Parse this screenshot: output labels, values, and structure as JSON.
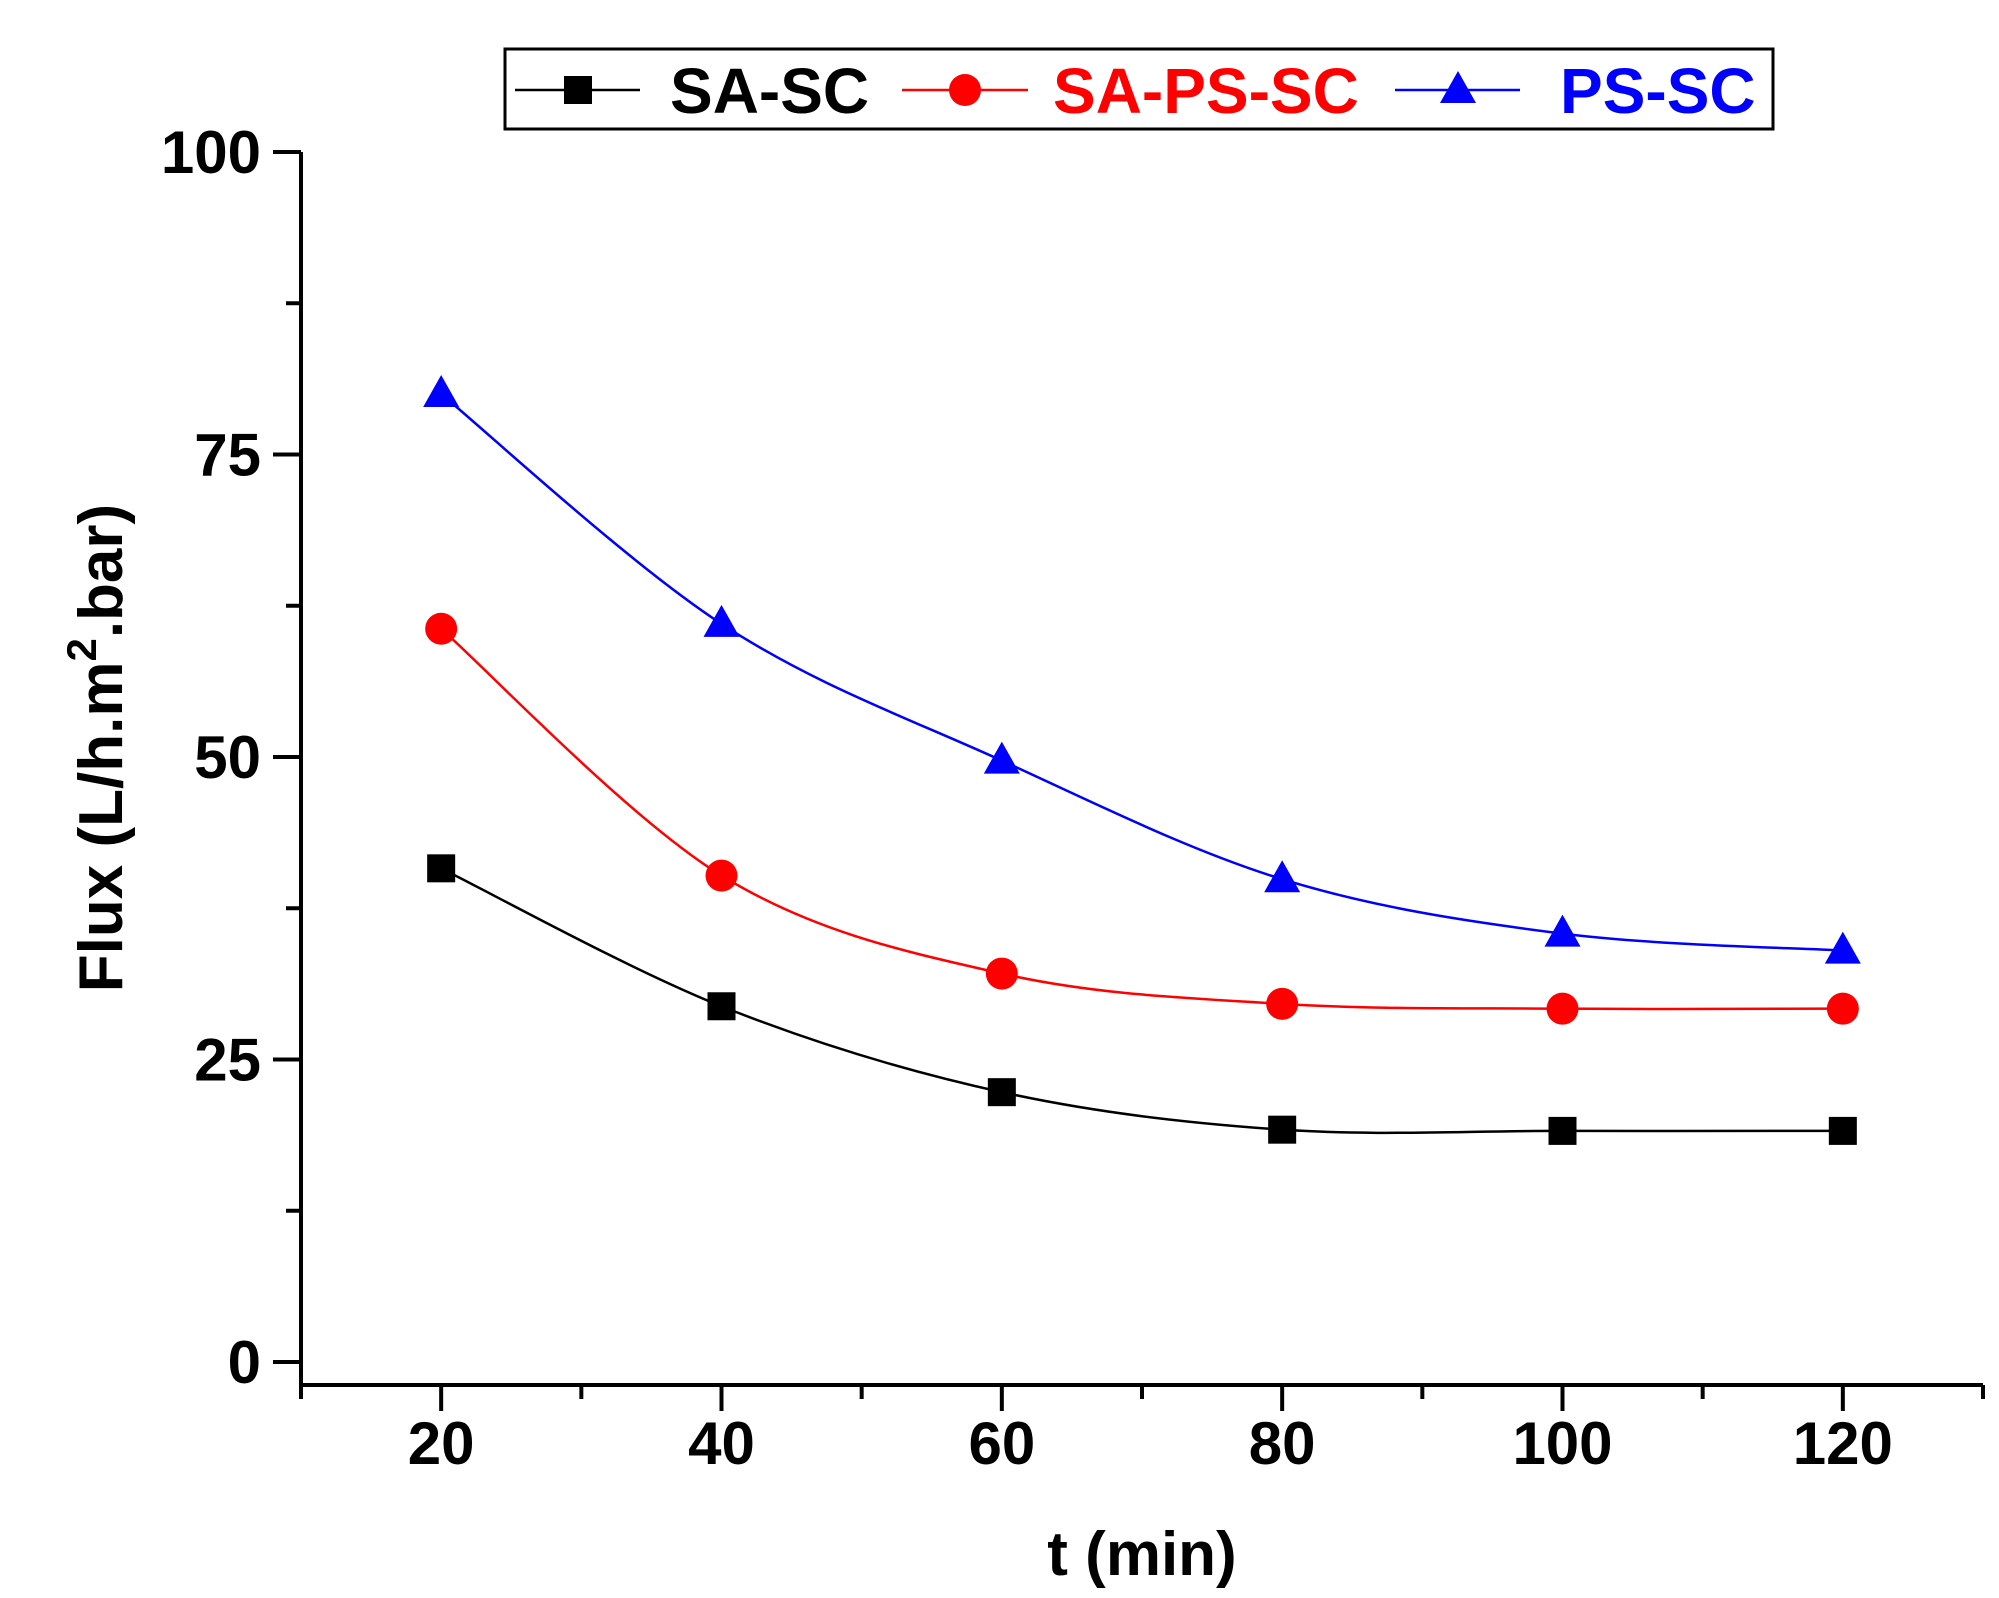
{
  "chart_data": {
    "type": "line",
    "title": "",
    "xlabel": "t (min)",
    "ylabel": "Flux (L/h.m",
    "ylabel_sup": "2",
    "ylabel_tail": ".bar)",
    "xlim": [
      10,
      130
    ],
    "ylim": [
      0,
      100
    ],
    "xticks": [
      20,
      40,
      60,
      80,
      100,
      120
    ],
    "xticks_minor": [
      10,
      30,
      50,
      70,
      90,
      110,
      130
    ],
    "yticks": [
      0,
      25,
      50,
      75,
      100
    ],
    "yticks_minor": [
      12.5,
      37.5,
      62.5,
      87.5
    ],
    "x": [
      20,
      40,
      60,
      80,
      100,
      120
    ],
    "grid": false,
    "legend_position": "top",
    "series": [
      {
        "name": "SA-SC",
        "color": "#000000",
        "marker": "square",
        "values": [
          40.8,
          29.4,
          22.3,
          19.2,
          19.1,
          19.1
        ]
      },
      {
        "name": "SA-PS-SC",
        "color": "#ff0000",
        "marker": "circle",
        "values": [
          60.6,
          40.2,
          32.1,
          29.6,
          29.2,
          29.2
        ]
      },
      {
        "name": "PS-SC",
        "color": "#0000ff",
        "marker": "triangle",
        "values": [
          80.0,
          61.0,
          49.7,
          39.9,
          35.4,
          34.0
        ]
      }
    ]
  }
}
